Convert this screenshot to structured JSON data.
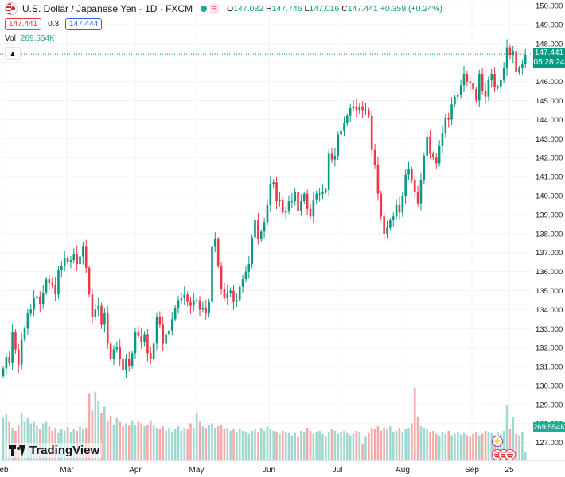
{
  "header": {
    "symbol": "U.S. Dollar / Japanese Yen · 1D · FXCM",
    "eq_badge": "=",
    "o_label": "O",
    "o_value": "147.082",
    "h_label": "H",
    "h_value": "147.746",
    "l_label": "L",
    "l_value": "147.016",
    "c_label": "C",
    "c_value": "147.441",
    "change": "+0.359 (+0.24%)"
  },
  "quote": {
    "bid": "147.441",
    "spread": "0.3",
    "ask": "147.444"
  },
  "volume": {
    "label": "Vol",
    "value": "269.554K"
  },
  "collapse_icon": "chevron-up-icon",
  "branding": "TradingView",
  "last_price": {
    "price": "147.441",
    "countdown": "05:28:24"
  },
  "vol_label": "269.554K",
  "colors": {
    "up": "#089981",
    "down": "#f23645",
    "up_vol": "#22ab94",
    "down_vol": "#f7a9a7",
    "grid": "#f0f3fa"
  },
  "chart_data": {
    "type": "candlestick",
    "y_ticks": [
      "150.000",
      "149.000",
      "148.000",
      "147.000",
      "146.000",
      "145.000",
      "144.000",
      "143.000",
      "142.000",
      "141.000",
      "140.000",
      "139.000",
      "138.000",
      "137.000",
      "136.000",
      "135.000",
      "134.000",
      "133.000",
      "132.000",
      "131.000",
      "130.000",
      "129.000",
      "128.000",
      "127.000"
    ],
    "ylim": [
      126.5,
      150.2
    ],
    "x_ticks": [
      "Feb",
      "Mar",
      "Apr",
      "May",
      "Jun",
      "Jul",
      "Aug",
      "Sep",
      "25"
    ],
    "last_price": 147.441,
    "last_volume": "269.554K",
    "closes": [
      130.9,
      131.5,
      131.2,
      132.8,
      131.9,
      131.1,
      132.4,
      133.0,
      133.8,
      134.0,
      134.6,
      134.7,
      134.3,
      134.9,
      135.6,
      135.4,
      135.3,
      134.8,
      136.1,
      136.3,
      136.7,
      136.5,
      136.6,
      136.9,
      136.4,
      136.8,
      137.3,
      136.2,
      134.8,
      133.6,
      134.0,
      134.2,
      133.2,
      133.8,
      132.2,
      131.4,
      131.9,
      132.0,
      131.4,
      130.8,
      131.4,
      131.0,
      131.7,
      132.8,
      132.6,
      132.3,
      132.7,
      131.7,
      131.4,
      132.2,
      133.6,
      133.2,
      132.2,
      132.7,
      132.9,
      133.5,
      134.1,
      134.5,
      134.6,
      134.8,
      134.4,
      134.2,
      134.5,
      134.5,
      134.0,
      134.1,
      133.8,
      134.4,
      137.3,
      137.7,
      136.3,
      135.1,
      134.6,
      134.9,
      135.0,
      134.4,
      134.5,
      135.2,
      135.6,
      136.0,
      136.4,
      137.8,
      138.7,
      137.7,
      138.1,
      138.6,
      139.5,
      140.6,
      140.7,
      139.7,
      139.8,
      139.1,
      139.2,
      139.7,
      139.7,
      140.2,
      139.2,
      139.7,
      140.1,
      139.3,
      138.9,
      139.8,
      140.1,
      140.1,
      140.2,
      140.3,
      142.2,
      141.9,
      142.1,
      143.2,
      143.4,
      143.8,
      144.2,
      144.6,
      144.7,
      144.5,
      144.7,
      144.5,
      144.5,
      144.2,
      142.4,
      141.6,
      140.1,
      138.9,
      138.0,
      138.3,
      138.7,
      138.9,
      139.5,
      139.1,
      140.0,
      141.1,
      141.4,
      140.8,
      140.2,
      139.6,
      140.8,
      142.1,
      143.1,
      142.2,
      142.0,
      141.7,
      142.6,
      143.3,
      144.1,
      144.0,
      144.8,
      145.2,
      145.3,
      145.8,
      146.4,
      146.0,
      145.9,
      145.6,
      145.0,
      146.4,
      145.5,
      145.2,
      146.1,
      146.4,
      145.7,
      145.7,
      146.1,
      146.7,
      147.8,
      147.4,
      147.6,
      146.5,
      146.7,
      146.9,
      147.4
    ],
    "volumes": [
      0.55,
      0.6,
      0.5,
      0.42,
      0.38,
      0.45,
      0.62,
      0.5,
      0.55,
      0.48,
      0.5,
      0.45,
      0.4,
      0.48,
      0.5,
      0.44,
      0.38,
      0.42,
      0.35,
      0.4,
      0.38,
      0.43,
      0.36,
      0.4,
      0.38,
      0.44,
      0.4,
      0.42,
      0.88,
      0.65,
      0.9,
      0.78,
      0.62,
      0.7,
      0.52,
      0.58,
      0.46,
      0.55,
      0.5,
      0.44,
      0.48,
      0.45,
      0.52,
      0.46,
      0.5,
      0.48,
      0.44,
      0.46,
      0.52,
      0.45,
      0.42,
      0.4,
      0.44,
      0.38,
      0.42,
      0.36,
      0.4,
      0.44,
      0.38,
      0.42,
      0.4,
      0.48,
      0.42,
      0.62,
      0.5,
      0.44,
      0.42,
      0.46,
      0.48,
      0.42,
      0.44,
      0.46,
      0.4,
      0.42,
      0.38,
      0.4,
      0.36,
      0.4,
      0.38,
      0.36,
      0.34,
      0.38,
      0.4,
      0.36,
      0.42,
      0.38,
      0.44,
      0.4,
      0.38,
      0.36,
      0.34,
      0.38,
      0.36,
      0.35,
      0.32,
      0.35,
      0.3,
      0.38,
      0.36,
      0.42,
      0.38,
      0.34,
      0.36,
      0.38,
      0.34,
      0.3,
      0.36,
      0.4,
      0.38,
      0.34,
      0.36,
      0.38,
      0.35,
      0.32,
      0.34,
      0.38,
      0.36,
      0.2,
      0.3,
      0.35,
      0.42,
      0.4,
      0.44,
      0.38,
      0.42,
      0.4,
      0.44,
      0.36,
      0.38,
      0.42,
      0.36,
      0.4,
      0.42,
      0.48,
      0.95,
      0.56,
      0.44,
      0.42,
      0.4,
      0.36,
      0.38,
      0.34,
      0.32,
      0.36,
      0.34,
      0.38,
      0.32,
      0.34,
      0.36,
      0.33,
      0.35,
      0.32,
      0.3,
      0.34,
      0.36,
      0.32,
      0.34,
      0.38,
      0.36,
      0.35,
      0.32,
      0.36,
      0.34,
      0.38,
      0.72,
      0.4,
      0.56,
      0.34,
      0.32,
      0.36,
      0.1
    ]
  }
}
